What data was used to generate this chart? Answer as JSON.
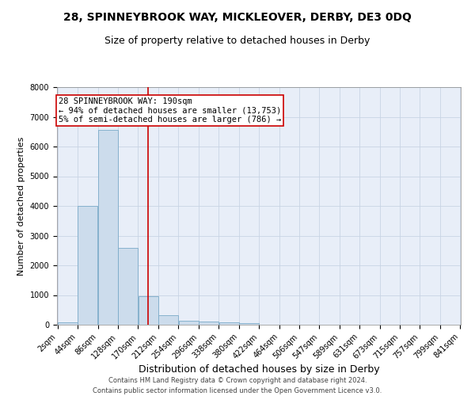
{
  "title": "28, SPINNEYBROOK WAY, MICKLEOVER, DERBY, DE3 0DQ",
  "subtitle": "Size of property relative to detached houses in Derby",
  "xlabel": "Distribution of detached houses by size in Derby",
  "ylabel": "Number of detached properties",
  "bin_edges": [
    2,
    44,
    86,
    128,
    170,
    212,
    254,
    296,
    338,
    380,
    422,
    464,
    506,
    547,
    589,
    631,
    673,
    715,
    757,
    799,
    841
  ],
  "bar_heights": [
    80,
    4000,
    6550,
    2600,
    960,
    320,
    140,
    100,
    80,
    50,
    0,
    0,
    0,
    0,
    0,
    0,
    0,
    0,
    0,
    0
  ],
  "bar_color": "#ccdcec",
  "bar_edge_color": "#7aaac8",
  "property_line_x": 190,
  "property_line_color": "#cc0000",
  "annotation_box_color": "#cc0000",
  "annotation_line1": "28 SPINNEYBROOK WAY: 190sqm",
  "annotation_line2": "← 94% of detached houses are smaller (13,753)",
  "annotation_line3": "5% of semi-detached houses are larger (786) →",
  "ylim": [
    0,
    8000
  ],
  "yticks": [
    0,
    1000,
    2000,
    3000,
    4000,
    5000,
    6000,
    7000,
    8000
  ],
  "grid_color": "#c8d4e4",
  "background_color": "#e8eef8",
  "footer_line1": "Contains HM Land Registry data © Crown copyright and database right 2024.",
  "footer_line2": "Contains public sector information licensed under the Open Government Licence v3.0.",
  "title_fontsize": 10,
  "subtitle_fontsize": 9,
  "xlabel_fontsize": 9,
  "ylabel_fontsize": 8,
  "tick_fontsize": 7,
  "annotation_fontsize": 7.5,
  "footer_fontsize": 6
}
